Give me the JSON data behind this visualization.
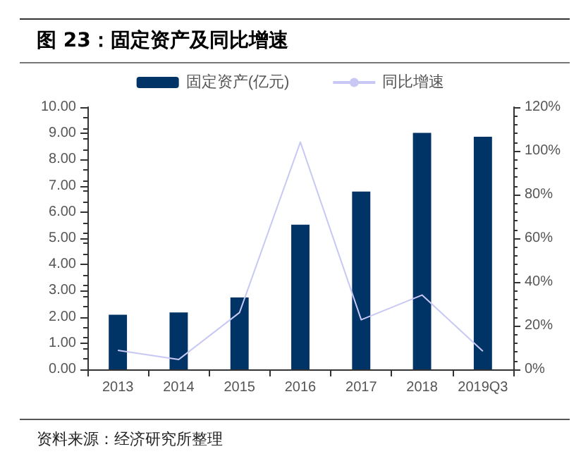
{
  "chart_data": {
    "type": "bar",
    "title": "图 23：固定资产及同比增速",
    "categories": [
      "2013",
      "2014",
      "2015",
      "2016",
      "2017",
      "2018",
      "2019Q3"
    ],
    "series": [
      {
        "name": "固定资产(亿元)",
        "color": "#003366",
        "values": [
          2.08,
          2.17,
          2.74,
          5.52,
          6.78,
          9.02,
          8.87
        ]
      },
      {
        "name": "同比增速",
        "type": "line",
        "axis": "y2",
        "color": "#c8c8f5",
        "marker": "none",
        "values": [
          8.7,
          4.5,
          26,
          104,
          22.7,
          34,
          8.3
        ]
      }
    ],
    "ylim": [
      0,
      10
    ],
    "yticks": [
      {
        "value": 0,
        "label": "0.00"
      },
      {
        "value": 1,
        "label": "1.00"
      },
      {
        "value": 2,
        "label": "2.00"
      },
      {
        "value": 3,
        "label": "3.00"
      },
      {
        "value": 4,
        "label": "4.00"
      },
      {
        "value": 5,
        "label": "5.00"
      },
      {
        "value": 6,
        "label": "6.00"
      },
      {
        "value": 7,
        "label": "7.00"
      },
      {
        "value": 8,
        "label": "8.00"
      },
      {
        "value": 9,
        "label": "9.00"
      },
      {
        "value": 10,
        "label": "10.00"
      }
    ],
    "y2lim": [
      0,
      120
    ],
    "y2ticks": [
      {
        "value": 0,
        "label": "0%"
      },
      {
        "value": 20,
        "label": "20%"
      },
      {
        "value": 40,
        "label": "40%"
      },
      {
        "value": 60,
        "label": "60%"
      },
      {
        "value": 80,
        "label": "80%"
      },
      {
        "value": 100,
        "label": "100%"
      },
      {
        "value": 120,
        "label": "120%"
      }
    ],
    "legend": "top",
    "grid": false,
    "annotations": [
      "资料来源：经济研究所整理"
    ]
  }
}
